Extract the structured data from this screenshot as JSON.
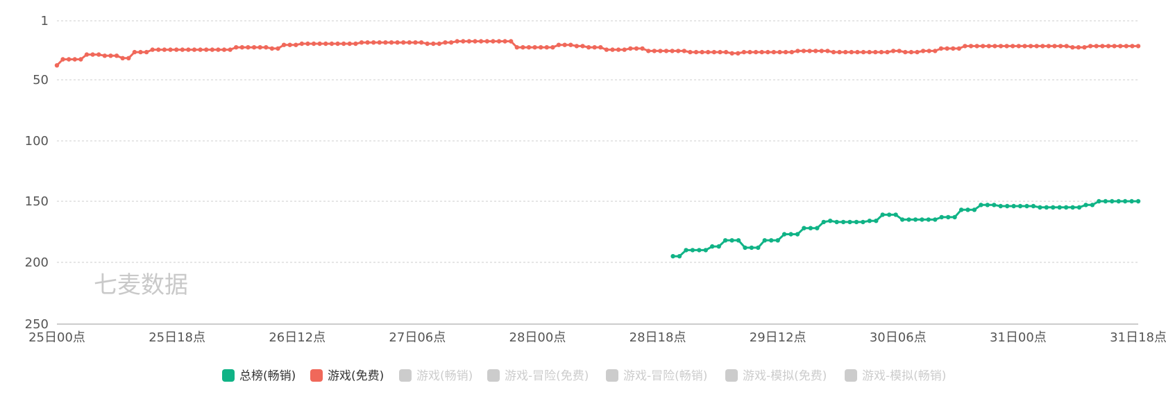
{
  "watermark": "七麦数据",
  "chart_data": {
    "type": "line",
    "y_inverted": true,
    "y_ticks": [
      "1",
      "50",
      "100",
      "150",
      "200",
      "250"
    ],
    "y_tick_values": [
      1,
      50,
      100,
      150,
      200,
      250
    ],
    "ylim": [
      1,
      250
    ],
    "x_tick_labels": [
      "25日00点",
      "25日18点",
      "26日12点",
      "27日06点",
      "28日00点",
      "28日18点",
      "29日12点",
      "30日06点",
      "31日00点",
      "31日18点"
    ],
    "x_tick_hours": [
      0,
      18,
      36,
      54,
      72,
      90,
      108,
      126,
      144,
      162
    ],
    "xlim": [
      0,
      162
    ],
    "grid": true,
    "legend_position": "bottom",
    "series": [
      {
        "name": "总榜(畅销)",
        "color": "#10b386",
        "active": true,
        "points": [
          [
            94,
            195
          ],
          [
            95,
            195
          ],
          [
            96,
            190
          ],
          [
            97,
            190
          ],
          [
            98,
            190
          ],
          [
            99,
            190
          ],
          [
            100,
            187
          ],
          [
            101,
            187
          ],
          [
            102,
            182
          ],
          [
            103,
            182
          ],
          [
            104,
            182
          ],
          [
            105,
            188
          ],
          [
            106,
            188
          ],
          [
            107,
            188
          ],
          [
            108,
            182
          ],
          [
            109,
            182
          ],
          [
            110,
            182
          ],
          [
            111,
            177
          ],
          [
            112,
            177
          ],
          [
            113,
            177
          ],
          [
            114,
            172
          ],
          [
            115,
            172
          ],
          [
            116,
            172
          ],
          [
            117,
            167
          ],
          [
            118,
            166
          ],
          [
            119,
            167
          ],
          [
            120,
            167
          ],
          [
            121,
            167
          ],
          [
            122,
            167
          ],
          [
            123,
            167
          ],
          [
            124,
            166
          ],
          [
            125,
            166
          ],
          [
            126,
            161
          ],
          [
            127,
            161
          ],
          [
            128,
            161
          ],
          [
            129,
            165
          ],
          [
            130,
            165
          ],
          [
            131,
            165
          ],
          [
            132,
            165
          ],
          [
            133,
            165
          ],
          [
            134,
            165
          ],
          [
            135,
            163
          ],
          [
            136,
            163
          ],
          [
            137,
            163
          ],
          [
            138,
            157
          ],
          [
            139,
            157
          ],
          [
            140,
            157
          ],
          [
            141,
            153
          ],
          [
            142,
            153
          ],
          [
            143,
            153
          ],
          [
            144,
            154
          ],
          [
            145,
            154
          ],
          [
            146,
            154
          ],
          [
            147,
            154
          ],
          [
            148,
            154
          ],
          [
            149,
            154
          ],
          [
            150,
            155
          ],
          [
            151,
            155
          ],
          [
            152,
            155
          ],
          [
            153,
            155
          ],
          [
            154,
            155
          ],
          [
            155,
            155
          ],
          [
            156,
            155
          ],
          [
            157,
            153
          ],
          [
            158,
            153
          ],
          [
            159,
            150
          ],
          [
            160,
            150
          ],
          [
            161,
            150
          ],
          [
            162,
            150
          ],
          [
            163,
            150
          ],
          [
            164,
            150
          ],
          [
            165,
            150
          ]
        ]
      },
      {
        "name": "游戏(免费)",
        "color": "#f0685a",
        "active": true,
        "values": [
          38,
          33,
          33,
          33,
          33,
          29,
          29,
          29,
          30,
          30,
          30,
          32,
          32,
          27,
          27,
          27,
          25,
          25,
          25,
          25,
          25,
          25,
          25,
          25,
          25,
          25,
          25,
          25,
          25,
          25,
          23,
          23,
          23,
          23,
          23,
          23,
          24,
          24,
          21,
          21,
          21,
          20,
          20,
          20,
          20,
          20,
          20,
          20,
          20,
          20,
          20,
          19,
          19,
          19,
          19,
          19,
          19,
          19,
          19,
          19,
          19,
          19,
          20,
          20,
          20,
          19,
          19,
          18,
          18,
          18,
          18,
          18,
          18,
          18,
          18,
          18,
          18,
          23,
          23,
          23,
          23,
          23,
          23,
          23,
          21,
          21,
          21,
          22,
          22,
          23,
          23,
          23,
          25,
          25,
          25,
          25,
          24,
          24,
          24,
          26,
          26,
          26,
          26,
          26,
          26,
          26,
          27,
          27,
          27,
          27,
          27,
          27,
          27,
          28,
          28,
          27,
          27,
          27,
          27,
          27,
          27,
          27,
          27,
          27,
          26,
          26,
          26,
          26,
          26,
          26,
          27,
          27,
          27,
          27,
          27,
          27,
          27,
          27,
          27,
          27,
          26,
          26,
          27,
          27,
          27,
          26,
          26,
          26,
          24,
          24,
          24,
          24,
          22,
          22,
          22,
          22,
          22,
          22,
          22,
          22,
          22,
          22,
          22,
          22,
          22,
          22,
          22,
          22,
          22,
          22,
          23,
          23,
          23,
          22,
          22,
          22,
          22,
          22,
          22,
          22,
          22,
          22
        ]
      },
      {
        "name": "游戏(畅销)",
        "color": "#cccccc",
        "active": false
      },
      {
        "name": "游戏-冒险(免费)",
        "color": "#cccccc",
        "active": false
      },
      {
        "name": "游戏-冒险(畅销)",
        "color": "#cccccc",
        "active": false
      },
      {
        "name": "游戏-模拟(免费)",
        "color": "#cccccc",
        "active": false
      },
      {
        "name": "游戏-模拟(畅销)",
        "color": "#cccccc",
        "active": false
      }
    ]
  }
}
